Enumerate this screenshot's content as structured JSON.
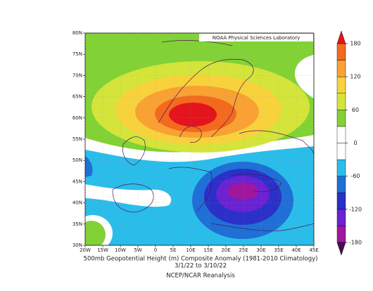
{
  "chart_data": {
    "type": "contour-map",
    "title": "500mb Geopotential Height (m) Composite Anomaly (1981-2010 Climatology)",
    "subtitle": "3/1/22  to 3/10/22",
    "source": "NCEP/NCAR Reanalysis",
    "credit": "NOAA Physical Sciences Laboratory",
    "xlim": [
      -20,
      45
    ],
    "xticks": [
      {
        "value": -20,
        "label": "20W"
      },
      {
        "value": -15,
        "label": "15W"
      },
      {
        "value": -10,
        "label": "10W"
      },
      {
        "value": -5,
        "label": "5W"
      },
      0,
      {
        "value": 5,
        "label": "5E"
      },
      {
        "value": 10,
        "label": "10E"
      },
      {
        "value": 15,
        "label": "15E"
      },
      {
        "value": 20,
        "label": "20E"
      },
      {
        "value": 25,
        "label": "25E"
      },
      {
        "value": 30,
        "label": "30E"
      },
      {
        "value": 35,
        "label": "35E"
      },
      {
        "value": 40,
        "label": "40E"
      },
      {
        "value": 45,
        "label": "45E"
      }
    ],
    "ylim": [
      30,
      80
    ],
    "yticks": [
      {
        "value": 30,
        "label": "30N"
      },
      {
        "value": 35,
        "label": "35N"
      },
      {
        "value": 40,
        "label": "40N"
      },
      {
        "value": 45,
        "label": "45N"
      },
      {
        "value": 50,
        "label": "50N"
      },
      {
        "value": 55,
        "label": "55N"
      },
      {
        "value": 60,
        "label": "60N"
      },
      {
        "value": 65,
        "label": "65N"
      },
      {
        "value": 70,
        "label": "70N"
      },
      {
        "value": 75,
        "label": "75N"
      },
      {
        "value": 80,
        "label": "80N"
      }
    ],
    "grid": true,
    "colorbar": {
      "levels": [
        -180,
        -150,
        -120,
        -90,
        -60,
        -30,
        0,
        30,
        60,
        90,
        120,
        150,
        180
      ],
      "ticks": [
        -180,
        -120,
        -60,
        0,
        60,
        120,
        180
      ],
      "colors": [
        "#4a0e50",
        "#a0179e",
        "#6a22d2",
        "#2a30c8",
        "#1f6fd6",
        "#2bbde9",
        "#ffffff",
        "#ffffff",
        "#82d236",
        "#d4e43a",
        "#f8d23c",
        "#f9a132",
        "#f36a1e",
        "#e3141e"
      ]
    }
  }
}
